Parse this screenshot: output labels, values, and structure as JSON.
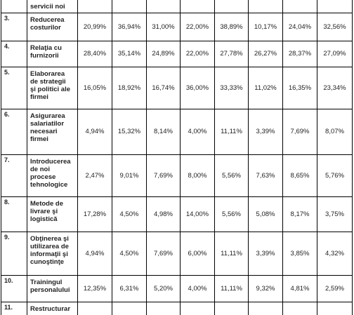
{
  "table": {
    "rows": [
      {
        "label": [
          "servicii noi"
        ]
      },
      {
        "number": "3.",
        "label": [
          "Reducerea",
          "costurilor"
        ],
        "values": [
          "20,99%",
          "36,94%",
          "31,00%",
          "22,00%",
          "38,89%",
          "10,17%",
          "24,04%",
          "32,56%"
        ]
      },
      {
        "number": "4.",
        "label": [
          "Relaţia cu",
          "furnizorii"
        ],
        "values": [
          "28,40%",
          "35,14%",
          "24,89%",
          "22,00%",
          "27,78%",
          "26,27%",
          "28,37%",
          "27,09%"
        ]
      },
      {
        "number": "5.",
        "label": [
          "Elaborarea",
          "de strategii",
          "şi politici ale",
          "firmei"
        ],
        "values": [
          "16,05%",
          "18,92%",
          "16,74%",
          "36,00%",
          "33,33%",
          "11,02%",
          "16,35%",
          "23,34%"
        ]
      },
      {
        "number": "6.",
        "label": [
          "Asigurarea",
          "salariatilor",
          "necesari",
          "firmei"
        ],
        "values": [
          "4,94%",
          "15,32%",
          "8,14%",
          "4,00%",
          "11,11%",
          "3,39%",
          "7,69%",
          "8,07%"
        ]
      },
      {
        "number": "7.",
        "label": [
          "Introducerea",
          "de noi",
          "procese",
          "tehnologice"
        ],
        "values": [
          "2,47%",
          "9,01%",
          "7,69%",
          "8,00%",
          "5,56%",
          "7,63%",
          "8,65%",
          "5,76%"
        ]
      },
      {
        "number": "8.",
        "label": [
          "Metode de",
          "livrare şi",
          "logistică"
        ],
        "values": [
          "17,28%",
          "4,50%",
          "4,98%",
          "14,00%",
          "5,56%",
          "5,08%",
          "8,17%",
          "3,75%"
        ]
      },
      {
        "number": "9.",
        "label": [
          "Obţinerea şi",
          "utilizarea de",
          "informaţii şi",
          "cunoştinţe"
        ],
        "values": [
          "4,94%",
          "4,50%",
          "7,69%",
          "6,00%",
          "11,11%",
          "3,39%",
          "3,85%",
          "4,32%"
        ]
      },
      {
        "number": "10.",
        "label": [
          "Trainingul",
          "personalului"
        ],
        "values": [
          "12,35%",
          "6,31%",
          "5,20%",
          "4,00%",
          "11,11%",
          "9,32%",
          "4,81%",
          "2,59%"
        ]
      },
      {
        "number": "11.",
        "label": [
          "Restructurar"
        ]
      }
    ]
  }
}
